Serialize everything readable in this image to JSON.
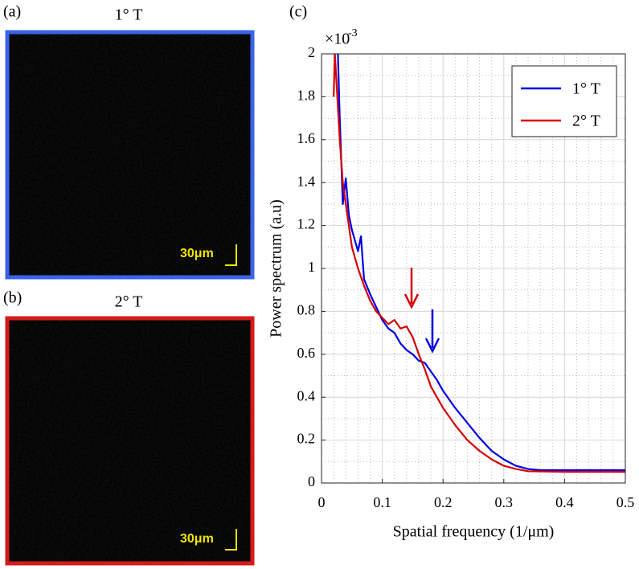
{
  "panels": {
    "a": {
      "label": "(a)",
      "title": "1° T",
      "scale_bar": "30μm"
    },
    "b": {
      "label": "(b)",
      "title": "2° T",
      "scale_bar": "30μm"
    }
  },
  "chart_data": {
    "type": "line",
    "panel_label": "(c)",
    "xlabel": "Spatial frequency (1/μm)",
    "ylabel": "Power spectrum (a.u)",
    "y_multiplier": {
      "base": "×10",
      "exponent": "-3"
    },
    "xlim": [
      0,
      0.5
    ],
    "xticks": [
      0,
      0.1,
      0.2,
      0.3,
      0.4,
      0.5
    ],
    "ylim": [
      0,
      2
    ],
    "yticks": [
      0,
      0.2,
      0.4,
      0.6,
      0.8,
      1,
      1.2,
      1.4,
      1.6,
      1.8,
      2
    ],
    "grid": true,
    "legend": "upper right",
    "series": [
      {
        "name": "1° T",
        "color": "#0000e0",
        "x": [
          0.027,
          0.03,
          0.035,
          0.04,
          0.045,
          0.05,
          0.06,
          0.065,
          0.07,
          0.08,
          0.09,
          0.1,
          0.11,
          0.12,
          0.13,
          0.14,
          0.15,
          0.16,
          0.17,
          0.18,
          0.19,
          0.2,
          0.22,
          0.24,
          0.26,
          0.28,
          0.3,
          0.32,
          0.34,
          0.36,
          0.4,
          0.45,
          0.5
        ],
        "values": [
          2.0,
          1.7,
          1.3,
          1.42,
          1.25,
          1.18,
          1.08,
          1.15,
          0.95,
          0.88,
          0.82,
          0.76,
          0.72,
          0.7,
          0.65,
          0.62,
          0.6,
          0.57,
          0.56,
          0.52,
          0.48,
          0.43,
          0.35,
          0.28,
          0.21,
          0.15,
          0.11,
          0.08,
          0.065,
          0.06,
          0.06,
          0.06,
          0.06
        ]
      },
      {
        "name": "2° T",
        "color": "#d40000",
        "x": [
          0.02,
          0.022,
          0.025,
          0.03,
          0.035,
          0.04,
          0.05,
          0.06,
          0.07,
          0.08,
          0.09,
          0.1,
          0.11,
          0.12,
          0.13,
          0.14,
          0.15,
          0.16,
          0.17,
          0.18,
          0.19,
          0.2,
          0.22,
          0.24,
          0.26,
          0.28,
          0.3,
          0.32,
          0.34,
          0.4,
          0.5
        ],
        "values": [
          1.8,
          2.0,
          1.85,
          1.6,
          1.4,
          1.3,
          1.1,
          1.0,
          0.92,
          0.85,
          0.8,
          0.77,
          0.74,
          0.76,
          0.72,
          0.73,
          0.68,
          0.6,
          0.53,
          0.45,
          0.4,
          0.35,
          0.27,
          0.2,
          0.15,
          0.11,
          0.08,
          0.065,
          0.055,
          0.052,
          0.052
        ]
      }
    ]
  }
}
